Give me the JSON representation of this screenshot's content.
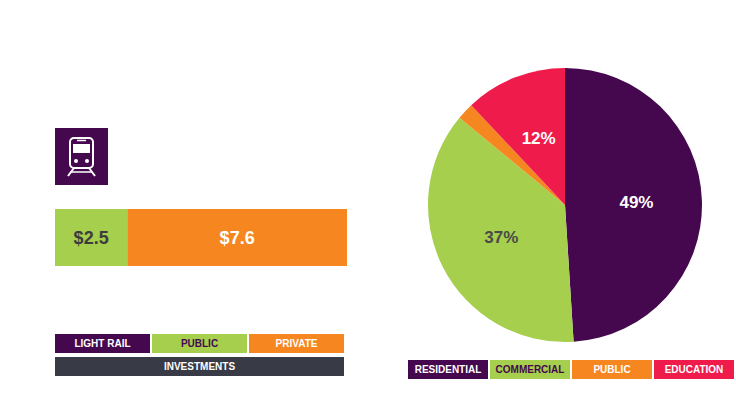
{
  "chart_data": [
    {
      "type": "bar",
      "orientation": "horizontal",
      "stacked": true,
      "data_labels": true,
      "tick_labels": false,
      "grid": false,
      "categories": [
        "LIGHT RAIL"
      ],
      "color": "#45084f",
      "xlabel": "INVESTMENTS",
      "xlim": [
        0,
        10.1
      ],
      "series": [
        {
          "name": "PUBLIC",
          "color": "#a5cf4c",
          "values": [
            2.5
          ],
          "value_labels": [
            "$2.5"
          ]
        },
        {
          "name": "PRIVATE",
          "color": "#f6861f",
          "values": [
            7.6
          ],
          "value_labels": [
            "$7.6"
          ]
        }
      ]
    },
    {
      "type": "pie",
      "data_labels": true,
      "categories": [
        "RESIDENTIAL",
        "COMMERCIAL",
        "PUBLIC",
        "EDUCATION"
      ],
      "values": [
        49,
        37,
        2,
        12
      ],
      "value_labels": [
        "49%",
        "37%",
        null,
        "12%"
      ],
      "colors": [
        "#45084f",
        "#a5cf4c",
        "#f6861f",
        "#ef1c4b"
      ]
    }
  ]
}
